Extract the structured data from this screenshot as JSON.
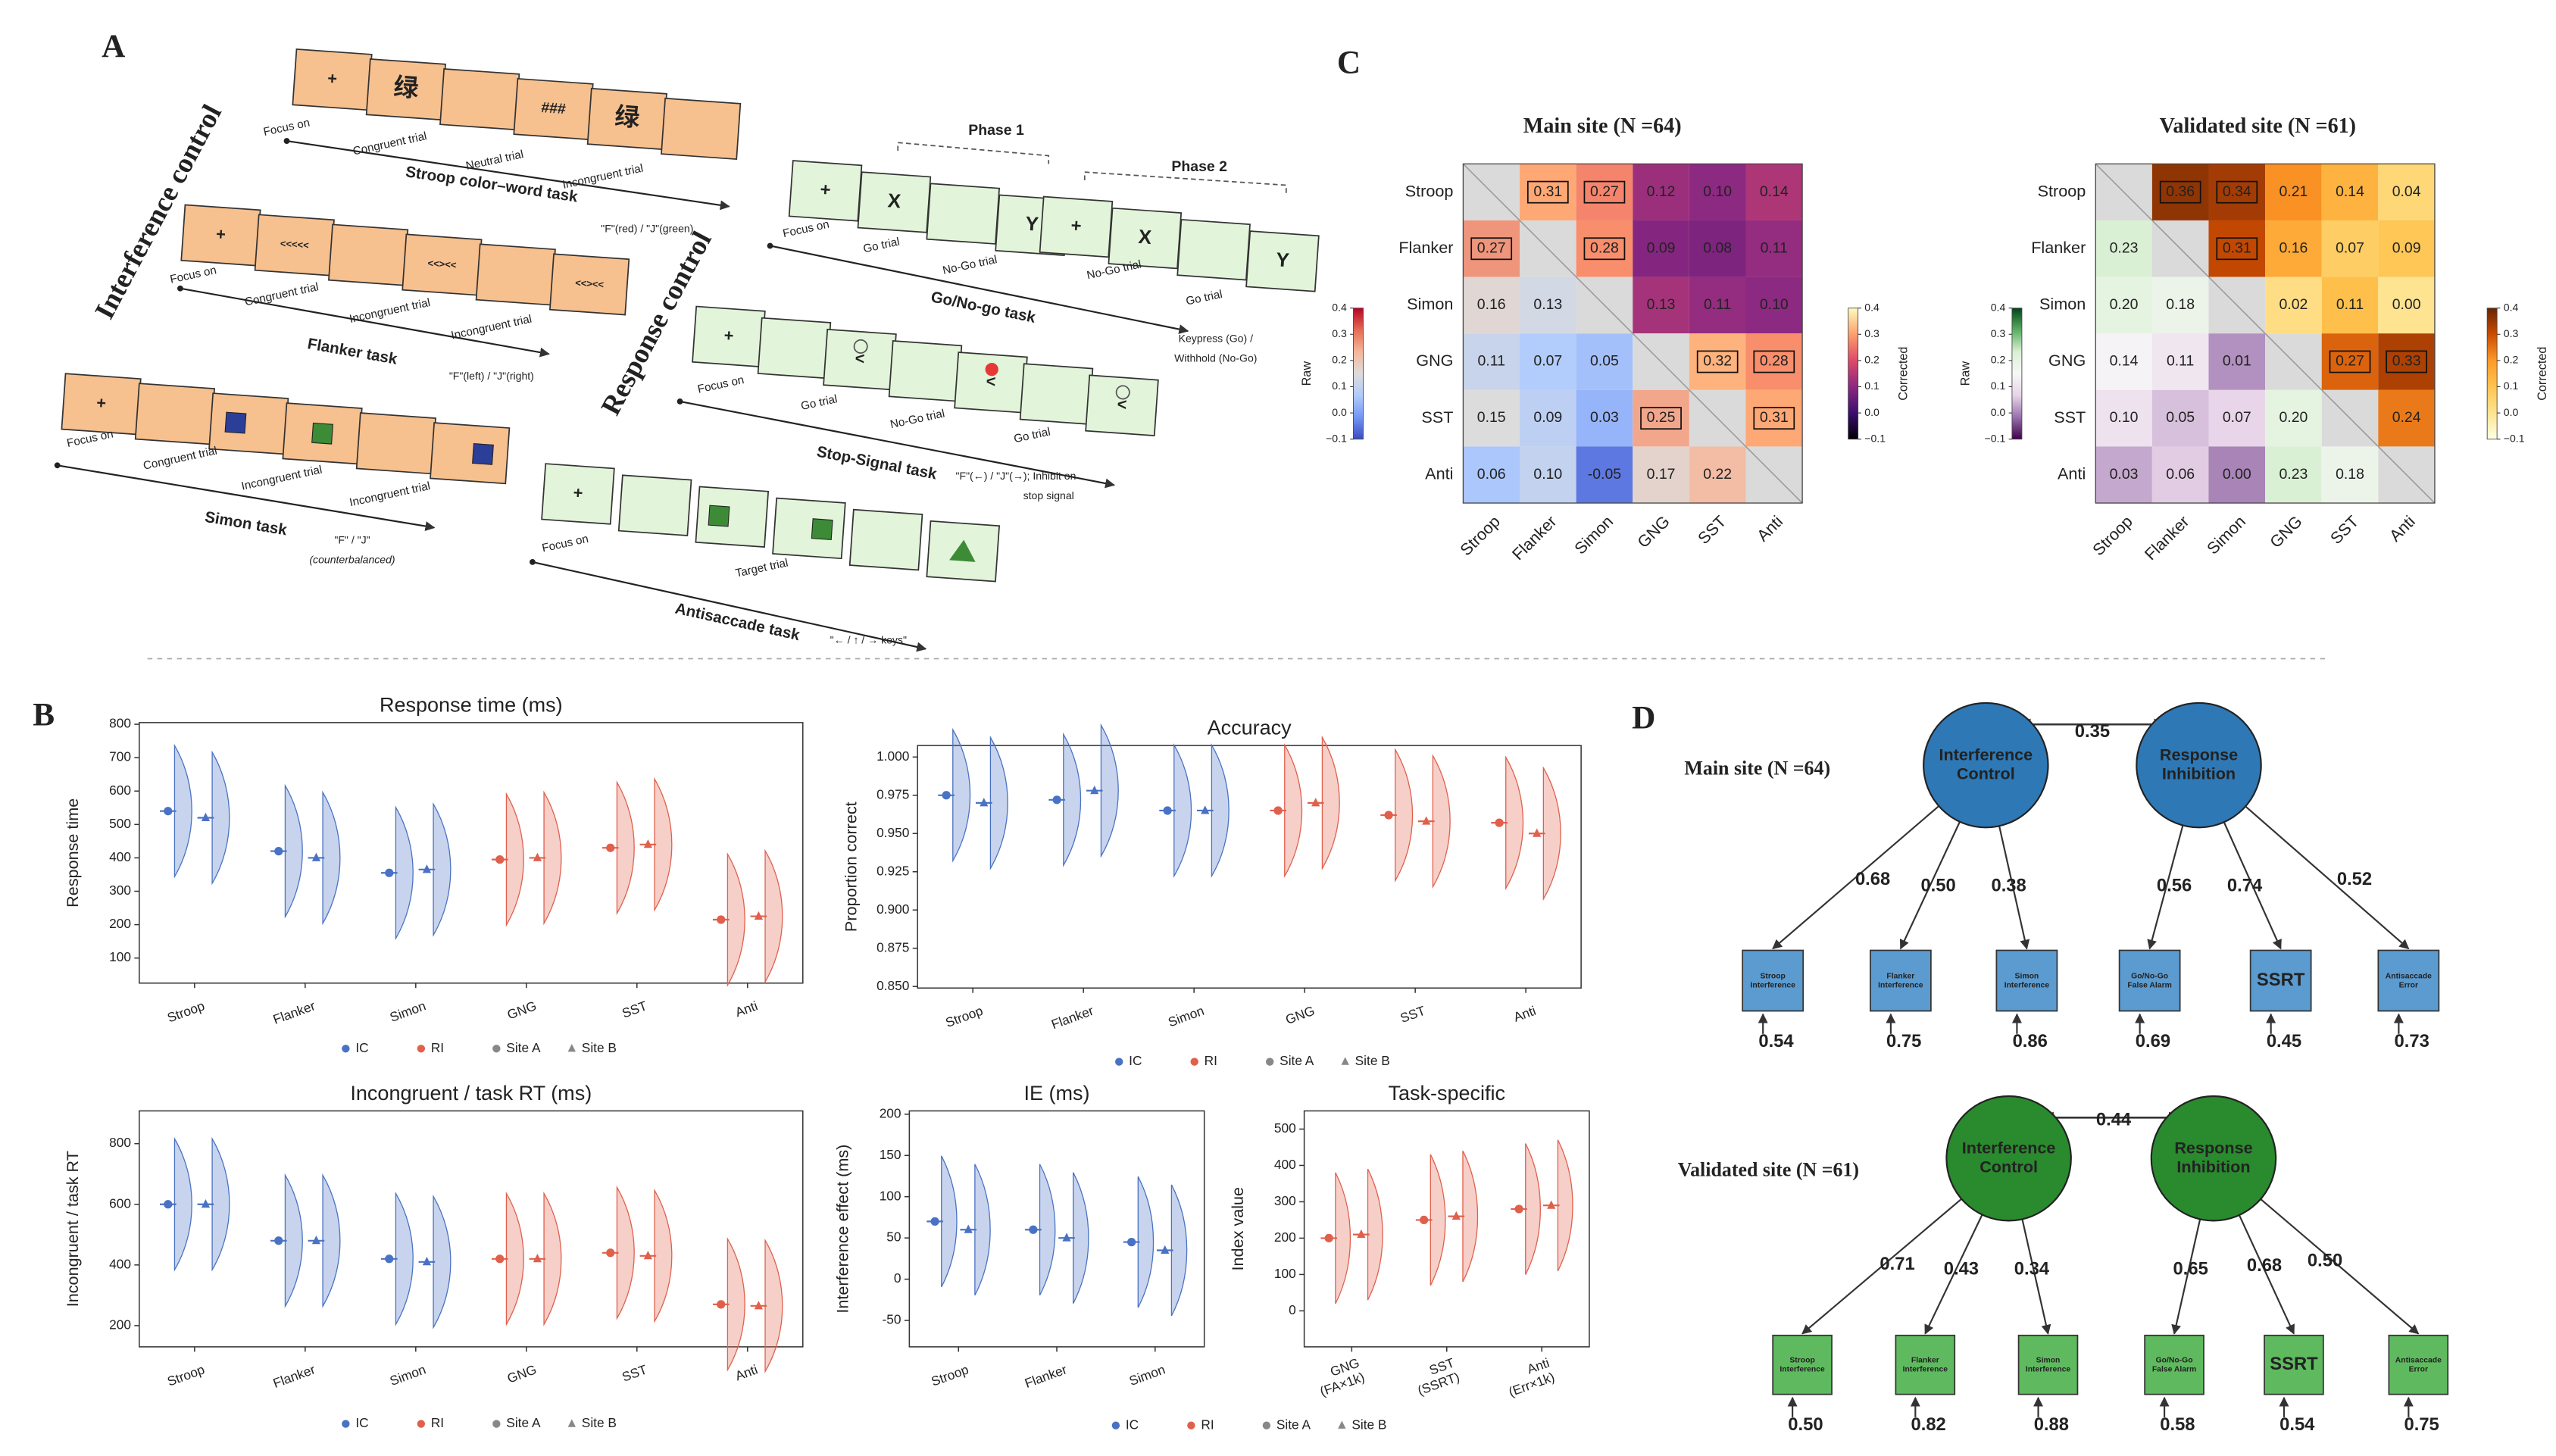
{
  "panel_labels": [
    "A",
    "B",
    "C",
    "D"
  ],
  "panel_a": {
    "group_labels": [
      "Interference control",
      "Response control"
    ],
    "phases": [
      "Phase 1",
      "Phase 2"
    ],
    "tasks": [
      {
        "name": "Stroop color–word task",
        "symbols": [
          "+",
          "绿",
          "###",
          "绿"
        ],
        "trials": [
          "Focus on",
          "Congruent trial",
          "Neutral trial",
          "Incongruent trial"
        ],
        "response": [
          "\"F\"(red) / \"J\"(green)"
        ]
      },
      {
        "name": "Flanker task",
        "symbols": [
          "+",
          "<<<<<",
          "<<><<",
          "<<><<"
        ],
        "trials": [
          "Focus on",
          "Congruent trial",
          "Incongruent trial",
          "Incongruent trial"
        ],
        "response": [
          "\"F\"(left) / \"J\"(right)"
        ]
      },
      {
        "name": "Simon task",
        "symbols": [
          "+"
        ],
        "trials": [
          "Focus on",
          "Congruent trial",
          "Incongruent trial",
          "Incongruent trial"
        ],
        "response": [
          "\"F\" / \"J\"",
          "(counterbalanced)"
        ]
      },
      {
        "name": "Go/No-go task",
        "symbols": [
          "+",
          "X",
          "Y",
          "+",
          "X",
          "Y"
        ],
        "trials": [
          "Focus on",
          "Go trial",
          "No-Go trial",
          "No-Go trial",
          "Go trial"
        ],
        "response": [
          "Keypress (Go) /",
          "Withhold (No-Go)"
        ]
      },
      {
        "name": "Stop-Signal task",
        "symbols": [
          "+",
          "<",
          "<",
          "<"
        ],
        "trials": [
          "Focus on",
          "Go trial",
          "No-Go trial",
          "Go trial"
        ],
        "response": [
          "\"F\"(←) / \"J\"(→); Inhibit on",
          "stop signal"
        ]
      },
      {
        "name": "Antisaccade task",
        "symbols": [
          "+"
        ],
        "trials": [
          "Focus on",
          "Target trial"
        ],
        "response": [
          "\"← / ↑ / → keys\""
        ]
      }
    ]
  },
  "chart_data": [
    {
      "type": "violin",
      "title": "Response time (ms)",
      "y_label": "Response time",
      "categories": [
        "Stroop",
        "Flanker",
        "Simon",
        "GNG",
        "SST",
        "Anti"
      ],
      "category_colors": [
        "#4a72c4",
        "#4a72c4",
        "#4a72c4",
        "#e0604c",
        "#e0604c",
        "#e0604c"
      ],
      "series": [
        {
          "name": "Site A",
          "marker": "circle",
          "values": [
            540,
            420,
            355,
            395,
            430,
            215
          ]
        },
        {
          "name": "Site B",
          "marker": "triangle",
          "values": [
            520,
            400,
            365,
            400,
            440,
            225
          ]
        }
      ],
      "ylim": [
        25,
        805
      ],
      "yticks": [
        100,
        200,
        300,
        400,
        500,
        600,
        700,
        800
      ],
      "legend": [
        {
          "name": "IC",
          "color": "#4a72c4",
          "marker": "circle"
        },
        {
          "name": "RI",
          "color": "#e0604c",
          "marker": "circle"
        },
        {
          "name": "Site A",
          "color": "#888888",
          "marker": "circle"
        },
        {
          "name": "Site B",
          "color": "#888888",
          "marker": "triangle"
        }
      ]
    },
    {
      "type": "violin",
      "title": "Accuracy",
      "y_label": "Proportion correct",
      "categories": [
        "Stroop",
        "Flanker",
        "Simon",
        "GNG",
        "SST",
        "Anti"
      ],
      "category_colors": [
        "#4a72c4",
        "#4a72c4",
        "#4a72c4",
        "#e0604c",
        "#e0604c",
        "#e0604c"
      ],
      "series": [
        {
          "name": "Site A",
          "marker": "circle",
          "values": [
            0.975,
            0.972,
            0.965,
            0.965,
            0.962,
            0.957
          ]
        },
        {
          "name": "Site B",
          "marker": "triangle",
          "values": [
            0.97,
            0.978,
            0.965,
            0.97,
            0.958,
            0.95
          ]
        }
      ],
      "ylim": [
        0.849,
        1.0075
      ],
      "yticks": [
        {
          "value": 0.85,
          "label": "0.850"
        },
        {
          "value": 0.875,
          "label": "0.875"
        },
        {
          "value": 0.9,
          "label": "0.900"
        },
        {
          "value": 0.925,
          "label": "0.925"
        },
        {
          "value": 0.95,
          "label": "0.950"
        },
        {
          "value": 0.975,
          "label": "0.975"
        },
        {
          "value": 1,
          "label": "1.000"
        }
      ],
      "legend": [
        {
          "name": "IC",
          "color": "#4a72c4",
          "marker": "circle"
        },
        {
          "name": "RI",
          "color": "#e0604c",
          "marker": "circle"
        },
        {
          "name": "Site A",
          "color": "#888888",
          "marker": "circle"
        },
        {
          "name": "Site B",
          "color": "#888888",
          "marker": "triangle"
        }
      ]
    },
    {
      "type": "violin",
      "title": "Incongruent / task RT (ms)",
      "y_label": "Incongruent / task RT",
      "categories": [
        "Stroop",
        "Flanker",
        "Simon",
        "GNG",
        "SST",
        "Anti"
      ],
      "category_colors": [
        "#4a72c4",
        "#4a72c4",
        "#4a72c4",
        "#e0604c",
        "#e0604c",
        "#e0604c"
      ],
      "series": [
        {
          "name": "Site A",
          "marker": "circle",
          "values": [
            600,
            480,
            420,
            420,
            440,
            270
          ]
        },
        {
          "name": "Site B",
          "marker": "triangle",
          "values": [
            600,
            480,
            410,
            420,
            430,
            265
          ]
        }
      ],
      "ylim": [
        130,
        908
      ],
      "yticks": [
        200,
        400,
        600,
        800
      ],
      "legend": [
        {
          "name": "IC",
          "color": "#4a72c4",
          "marker": "circle"
        },
        {
          "name": "RI",
          "color": "#e0604c",
          "marker": "circle"
        },
        {
          "name": "Site A",
          "color": "#888888",
          "marker": "circle"
        },
        {
          "name": "Site B",
          "color": "#888888",
          "marker": "triangle"
        }
      ]
    },
    {
      "type": "violin",
      "title": "IE (ms)",
      "y_label": "Interference effect (ms)",
      "categories": [
        "Stroop",
        "Flanker",
        "Simon"
      ],
      "category_colors": [
        "#4a72c4",
        "#4a72c4",
        "#4a72c4"
      ],
      "series": [
        {
          "name": "Site A",
          "marker": "circle",
          "values": [
            70,
            60,
            45
          ]
        },
        {
          "name": "Site B",
          "marker": "triangle",
          "values": [
            60,
            50,
            35
          ]
        }
      ],
      "ylim": [
        -82,
        204
      ],
      "yticks": [
        -50,
        0,
        50,
        100,
        150,
        200
      ],
      "legend": [
        {
          "name": "IC",
          "color": "#4a72c4",
          "marker": "circle"
        },
        {
          "name": "RI",
          "color": "#e0604c",
          "marker": "circle"
        },
        {
          "name": "Site A",
          "color": "#888888",
          "marker": "circle"
        },
        {
          "name": "Site B",
          "color": "#888888",
          "marker": "triangle"
        }
      ]
    },
    {
      "type": "violin",
      "title": "Task-specific",
      "y_label": "Index value",
      "categories": [
        "GNG\n(FA×1k)",
        "SST\n(SSRT)",
        "Anti\n(Err×1k)"
      ],
      "category_colors": [
        "#e0604c",
        "#e0604c",
        "#e0604c"
      ],
      "series": [
        {
          "name": "Site A",
          "marker": "circle",
          "values": [
            200,
            250,
            280
          ]
        },
        {
          "name": "Site B",
          "marker": "triangle",
          "values": [
            210,
            260,
            290
          ]
        }
      ],
      "ylim": [
        -99,
        550
      ],
      "yticks": [
        0,
        100,
        200,
        300,
        400,
        500
      ]
    },
    {
      "type": "heatmap",
      "title": "Main site (N =64)",
      "categories": [
        "Stroop",
        "Flanker",
        "Simon",
        "GNG",
        "SST",
        "Anti"
      ],
      "values": [
        [
          null,
          0.31,
          0.27,
          0.12,
          0.1,
          0.14
        ],
        [
          0.27,
          null,
          0.28,
          0.09,
          0.08,
          0.11
        ],
        [
          0.16,
          0.13,
          null,
          0.13,
          0.11,
          0.1
        ],
        [
          0.11,
          0.07,
          0.05,
          null,
          0.32,
          0.28
        ],
        [
          0.15,
          0.09,
          0.03,
          0.25,
          null,
          0.31
        ],
        [
          0.06,
          0.1,
          -0.05,
          0.17,
          0.22,
          null
        ]
      ],
      "value_labels": [
        [
          null,
          "0.31",
          "0.27",
          "0.12",
          "0.10",
          "0.14"
        ],
        [
          "0.27",
          null,
          "0.28",
          "0.09",
          "0.08",
          "0.11"
        ],
        [
          "0.16",
          "0.13",
          null,
          "0.13",
          "0.11",
          "0.10"
        ],
        [
          "0.11",
          "0.07",
          "0.05",
          null,
          "0.32",
          "0.28"
        ],
        [
          "0.15",
          "0.09",
          "0.03",
          "0.25",
          null,
          "0.31"
        ],
        [
          "0.06",
          "0.10",
          "-0.05",
          "0.17",
          "0.22",
          null
        ]
      ],
      "boxed": [
        [
          0,
          1
        ],
        [
          0,
          2
        ],
        [
          1,
          0
        ],
        [
          1,
          2
        ],
        [
          3,
          4
        ],
        [
          3,
          5
        ],
        [
          4,
          3
        ],
        [
          4,
          5
        ]
      ],
      "colorbars": [
        {
          "label": "Raw",
          "colors": [
            "#3b4cc0",
            "#7396f5",
            "#b0cbfc",
            "#dddcdc",
            "#f6b69a",
            "#e36c55",
            "#b40426"
          ],
          "clim": [
            -0.1,
            0.4
          ],
          "ticks": [
            {
              "value": -0.1,
              "label": "−0.1"
            },
            {
              "value": 0,
              "label": "0.0"
            },
            0.1,
            0.2,
            0.3,
            0.4
          ]
        },
        {
          "label": "Corrected",
          "colors": [
            "#000004",
            "#3b0f70",
            "#8c2981",
            "#de4968",
            "#fe9f6d",
            "#fcfdbf"
          ],
          "clim": [
            -0.1,
            0.4
          ],
          "ticks": [
            {
              "value": -0.1,
              "label": "−0.1"
            },
            {
              "value": 0,
              "label": "0.0"
            },
            0.1,
            0.2,
            0.3,
            0.4
          ]
        }
      ]
    },
    {
      "type": "heatmap",
      "title": "Validated site (N =61)",
      "categories": [
        "Stroop",
        "Flanker",
        "Simon",
        "GNG",
        "SST",
        "Anti"
      ],
      "values": [
        [
          null,
          0.36,
          0.34,
          0.21,
          0.14,
          0.04
        ],
        [
          0.23,
          null,
          0.31,
          0.16,
          0.07,
          0.09
        ],
        [
          0.2,
          0.18,
          null,
          0.02,
          0.11,
          0
        ],
        [
          0.14,
          0.11,
          0.01,
          null,
          0.27,
          0.33
        ],
        [
          0.1,
          0.05,
          0.07,
          0.2,
          null,
          0.24
        ],
        [
          0.03,
          0.06,
          0,
          0.23,
          0.18,
          null
        ]
      ],
      "value_labels": [
        [
          null,
          "0.36",
          "0.34",
          "0.21",
          "0.14",
          "0.04"
        ],
        [
          "0.23",
          null,
          "0.31",
          "0.16",
          "0.07",
          "0.09"
        ],
        [
          "0.20",
          "0.18",
          null,
          "0.02",
          "0.11",
          "0.00"
        ],
        [
          "0.14",
          "0.11",
          "0.01",
          null,
          "0.27",
          "0.33"
        ],
        [
          "0.10",
          "0.05",
          "0.07",
          "0.20",
          null,
          "0.24"
        ],
        [
          "0.03",
          "0.06",
          "0.00",
          "0.23",
          "0.18",
          null
        ]
      ],
      "boxed": [
        [
          0,
          1
        ],
        [
          0,
          2
        ],
        [
          1,
          2
        ],
        [
          3,
          4
        ],
        [
          3,
          5
        ]
      ],
      "colorbars": [
        {
          "label": "Raw",
          "colors": [
            "#40004b",
            "#9970ab",
            "#e7d4e8",
            "#f7f7f7",
            "#d9f0d3",
            "#5aae61",
            "#00441b"
          ],
          "clim": [
            -0.1,
            0.4
          ],
          "ticks": [
            {
              "value": -0.1,
              "label": "−0.1"
            },
            {
              "value": 0,
              "label": "0.0"
            },
            0.1,
            0.2,
            0.3,
            0.4
          ]
        },
        {
          "label": "Corrected",
          "colors": [
            "#ffffe5",
            "#fee391",
            "#fec44f",
            "#fe9929",
            "#cc4c02",
            "#662506"
          ],
          "clim": [
            -0.1,
            0.4
          ],
          "ticks": [
            {
              "value": -0.1,
              "label": "−0.1"
            },
            {
              "value": 0,
              "label": "0.0"
            },
            0.1,
            0.2,
            0.3,
            0.4
          ]
        }
      ]
    }
  ],
  "sem_models": [
    {
      "title": "Main site (N =64)",
      "factors": [
        "Interference\nControl",
        "Response\nInhibition"
      ],
      "factor_correlation": "0.35",
      "indicators": [
        "Stroop\nInterference",
        "Flanker\nInterference",
        "Simon\nInterference",
        "Go/No-Go\nFalse Alarm",
        "SSRT",
        "Antisaccade\nError"
      ],
      "loadings": [
        "0.68",
        "0.50",
        "0.38",
        "0.56",
        "0.74",
        "0.52"
      ],
      "residuals": [
        "0.54",
        "0.75",
        "0.86",
        "0.69",
        "0.45",
        "0.73"
      ]
    },
    {
      "title": "Validated site (N =61)",
      "factors": [
        "Interference\nControl",
        "Response\nInhibition"
      ],
      "factor_correlation": "0.44",
      "indicators": [
        "Stroop\nInterference",
        "Flanker\nInterference",
        "Simon\nInterference",
        "Go/No-Go\nFalse Alarm",
        "SSRT",
        "Antisaccade\nError"
      ],
      "loadings": [
        "0.71",
        "0.43",
        "0.34",
        "0.65",
        "0.68",
        "0.50"
      ],
      "residuals": [
        "0.50",
        "0.82",
        "0.88",
        "0.58",
        "0.54",
        "0.75"
      ]
    }
  ]
}
